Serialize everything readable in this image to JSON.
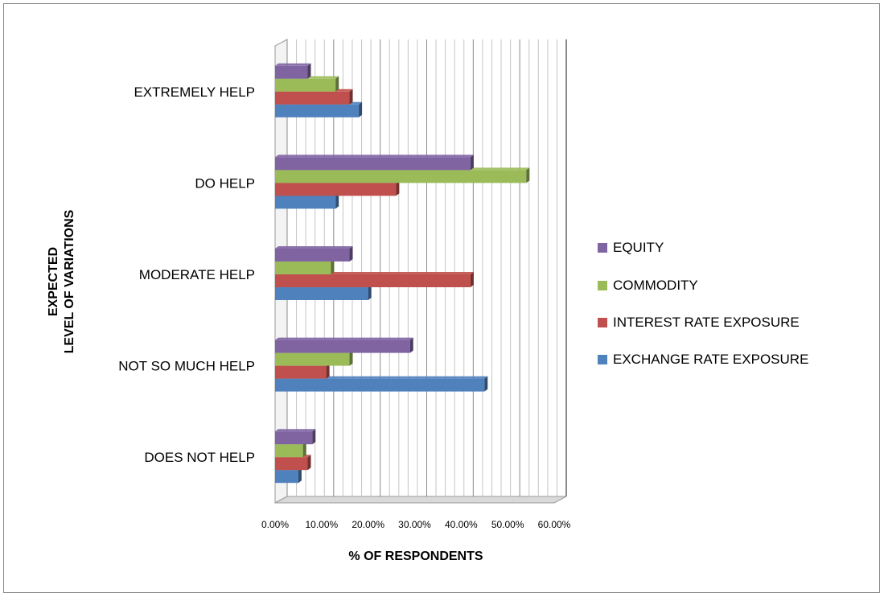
{
  "chart_data": {
    "type": "bar",
    "orientation": "horizontal",
    "style": "3d-clustered",
    "categories": [
      "DOES NOT HELP",
      "NOT SO MUCH HELP",
      "MODERATE HELP",
      "DO HELP",
      "EXTREMELY HELP"
    ],
    "series": [
      {
        "name": "EXCHANGE RATE EXPOSURE",
        "color": "#4F81BD",
        "values": [
          0.05,
          0.45,
          0.2,
          0.13,
          0.18
        ]
      },
      {
        "name": "INTEREST RATE EXPOSURE",
        "color": "#C0504D",
        "values": [
          0.07,
          0.11,
          0.42,
          0.26,
          0.16
        ]
      },
      {
        "name": "COMMODITY",
        "color": "#9BBB59",
        "values": [
          0.06,
          0.16,
          0.12,
          0.54,
          0.13
        ]
      },
      {
        "name": "EQUITY",
        "color": "#8064A2",
        "values": [
          0.08,
          0.29,
          0.16,
          0.42,
          0.07
        ]
      }
    ],
    "xticks": [
      "0.00%",
      "10.00%",
      "20.00%",
      "30.00%",
      "40.00%",
      "50.00%",
      "60.00%"
    ],
    "xlim": [
      0,
      0.6
    ],
    "xlabel": "% OF RESPONDENTS",
    "ylabel_lines": [
      "EXPECTED",
      "LEVEL OF VARIATIONS"
    ],
    "grid": true,
    "legend_position": "right"
  }
}
